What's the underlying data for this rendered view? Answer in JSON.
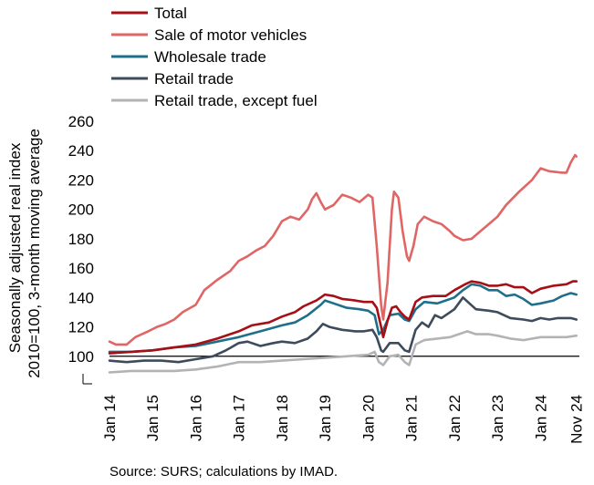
{
  "chart_data": {
    "type": "line",
    "ylabel_line1": "Seasonally adjusted real index",
    "ylabel_line2": "2010=100, 3-month moving average",
    "ylim": [
      80,
      260
    ],
    "yticks": [
      100,
      120,
      140,
      160,
      180,
      200,
      220,
      240,
      260
    ],
    "xlim": [
      2014.0,
      2024.9
    ],
    "xticks": [
      {
        "x": 2014.0,
        "label": "Jan 14"
      },
      {
        "x": 2015.0,
        "label": "Jan 15"
      },
      {
        "x": 2016.0,
        "label": "Jan 16"
      },
      {
        "x": 2017.0,
        "label": "Jan 17"
      },
      {
        "x": 2018.0,
        "label": "Jan 18"
      },
      {
        "x": 2019.0,
        "label": "Jan 19"
      },
      {
        "x": 2020.0,
        "label": "Jan 20"
      },
      {
        "x": 2021.0,
        "label": "Jan 21"
      },
      {
        "x": 2022.0,
        "label": "Jan 22"
      },
      {
        "x": 2023.0,
        "label": "Jan 23"
      },
      {
        "x": 2024.0,
        "label": "Jan 24"
      },
      {
        "x": 2024.83,
        "label": "Nov 24"
      }
    ],
    "reference_line": 100,
    "grid": false,
    "legend_position": "top",
    "series": [
      {
        "name": "Total",
        "color": "#a50f15",
        "points": [
          [
            2014.0,
            102
          ],
          [
            2014.5,
            103
          ],
          [
            2015.0,
            104
          ],
          [
            2015.5,
            106
          ],
          [
            2016.0,
            108
          ],
          [
            2016.5,
            112
          ],
          [
            2017.0,
            117
          ],
          [
            2017.3,
            121
          ],
          [
            2017.7,
            123
          ],
          [
            2018.0,
            127
          ],
          [
            2018.3,
            130
          ],
          [
            2018.5,
            134
          ],
          [
            2018.8,
            138
          ],
          [
            2019.0,
            142
          ],
          [
            2019.2,
            141
          ],
          [
            2019.4,
            139
          ],
          [
            2019.7,
            138
          ],
          [
            2019.9,
            137
          ],
          [
            2020.1,
            137
          ],
          [
            2020.2,
            133
          ],
          [
            2020.3,
            120
          ],
          [
            2020.35,
            113
          ],
          [
            2020.45,
            124
          ],
          [
            2020.55,
            133
          ],
          [
            2020.65,
            134
          ],
          [
            2020.75,
            130
          ],
          [
            2020.85,
            127
          ],
          [
            2020.95,
            125
          ],
          [
            2021.1,
            137
          ],
          [
            2021.25,
            140
          ],
          [
            2021.5,
            141
          ],
          [
            2021.8,
            141
          ],
          [
            2022.0,
            145
          ],
          [
            2022.25,
            149
          ],
          [
            2022.4,
            151
          ],
          [
            2022.6,
            150
          ],
          [
            2022.8,
            148
          ],
          [
            2023.0,
            148
          ],
          [
            2023.2,
            149
          ],
          [
            2023.4,
            147
          ],
          [
            2023.6,
            147
          ],
          [
            2023.8,
            143
          ],
          [
            2024.0,
            146
          ],
          [
            2024.3,
            148
          ],
          [
            2024.6,
            149
          ],
          [
            2024.75,
            151
          ],
          [
            2024.83,
            151
          ]
        ]
      },
      {
        "name": "Sale of motor vehicles",
        "color": "#e06666",
        "points": [
          [
            2014.0,
            110
          ],
          [
            2014.15,
            108
          ],
          [
            2014.4,
            108
          ],
          [
            2014.6,
            113
          ],
          [
            2014.9,
            117
          ],
          [
            2015.1,
            120
          ],
          [
            2015.3,
            122
          ],
          [
            2015.5,
            125
          ],
          [
            2015.7,
            130
          ],
          [
            2016.0,
            135
          ],
          [
            2016.2,
            145
          ],
          [
            2016.5,
            152
          ],
          [
            2016.8,
            158
          ],
          [
            2017.0,
            165
          ],
          [
            2017.2,
            168
          ],
          [
            2017.4,
            172
          ],
          [
            2017.6,
            175
          ],
          [
            2017.8,
            182
          ],
          [
            2018.0,
            192
          ],
          [
            2018.2,
            195
          ],
          [
            2018.4,
            193
          ],
          [
            2018.6,
            200
          ],
          [
            2018.7,
            207
          ],
          [
            2018.8,
            211
          ],
          [
            2018.9,
            205
          ],
          [
            2019.0,
            200
          ],
          [
            2019.2,
            203
          ],
          [
            2019.4,
            210
          ],
          [
            2019.6,
            208
          ],
          [
            2019.8,
            205
          ],
          [
            2020.0,
            210
          ],
          [
            2020.1,
            208
          ],
          [
            2020.2,
            175
          ],
          [
            2020.3,
            135
          ],
          [
            2020.35,
            125
          ],
          [
            2020.45,
            150
          ],
          [
            2020.55,
            200
          ],
          [
            2020.6,
            212
          ],
          [
            2020.7,
            208
          ],
          [
            2020.8,
            185
          ],
          [
            2020.9,
            168
          ],
          [
            2020.95,
            165
          ],
          [
            2021.05,
            175
          ],
          [
            2021.15,
            190
          ],
          [
            2021.3,
            195
          ],
          [
            2021.5,
            192
          ],
          [
            2021.7,
            190
          ],
          [
            2021.9,
            185
          ],
          [
            2022.0,
            182
          ],
          [
            2022.2,
            179
          ],
          [
            2022.4,
            180
          ],
          [
            2022.6,
            185
          ],
          [
            2022.8,
            190
          ],
          [
            2023.0,
            195
          ],
          [
            2023.2,
            203
          ],
          [
            2023.5,
            212
          ],
          [
            2023.8,
            220
          ],
          [
            2024.0,
            228
          ],
          [
            2024.2,
            226
          ],
          [
            2024.5,
            225
          ],
          [
            2024.6,
            225
          ],
          [
            2024.7,
            232
          ],
          [
            2024.8,
            237
          ],
          [
            2024.83,
            236
          ]
        ]
      },
      {
        "name": "Wholesale trade",
        "color": "#1f6f8b",
        "points": [
          [
            2014.0,
            103
          ],
          [
            2014.5,
            103
          ],
          [
            2015.0,
            104
          ],
          [
            2015.5,
            106
          ],
          [
            2016.0,
            107
          ],
          [
            2016.5,
            110
          ],
          [
            2017.0,
            113
          ],
          [
            2017.5,
            117
          ],
          [
            2018.0,
            121
          ],
          [
            2018.3,
            123
          ],
          [
            2018.6,
            128
          ],
          [
            2018.9,
            135
          ],
          [
            2019.0,
            138
          ],
          [
            2019.2,
            136
          ],
          [
            2019.5,
            133
          ],
          [
            2019.8,
            132
          ],
          [
            2020.0,
            131
          ],
          [
            2020.15,
            128
          ],
          [
            2020.25,
            115
          ],
          [
            2020.35,
            118
          ],
          [
            2020.5,
            128
          ],
          [
            2020.7,
            129
          ],
          [
            2020.85,
            125
          ],
          [
            2020.95,
            124
          ],
          [
            2021.1,
            132
          ],
          [
            2021.3,
            137
          ],
          [
            2021.6,
            136
          ],
          [
            2021.8,
            138
          ],
          [
            2022.0,
            140
          ],
          [
            2022.2,
            145
          ],
          [
            2022.4,
            149
          ],
          [
            2022.6,
            148
          ],
          [
            2022.8,
            145
          ],
          [
            2023.0,
            145
          ],
          [
            2023.2,
            141
          ],
          [
            2023.4,
            142
          ],
          [
            2023.6,
            139
          ],
          [
            2023.8,
            135
          ],
          [
            2024.0,
            136
          ],
          [
            2024.3,
            138
          ],
          [
            2024.5,
            141
          ],
          [
            2024.7,
            143
          ],
          [
            2024.83,
            142
          ]
        ]
      },
      {
        "name": "Retail trade",
        "color": "#3d4b5c",
        "points": [
          [
            2014.0,
            97
          ],
          [
            2014.4,
            96
          ],
          [
            2014.8,
            97
          ],
          [
            2015.2,
            97
          ],
          [
            2015.6,
            96
          ],
          [
            2016.0,
            98
          ],
          [
            2016.4,
            100
          ],
          [
            2016.7,
            104
          ],
          [
            2017.0,
            109
          ],
          [
            2017.2,
            110
          ],
          [
            2017.5,
            107
          ],
          [
            2017.8,
            109
          ],
          [
            2018.0,
            110
          ],
          [
            2018.3,
            109
          ],
          [
            2018.6,
            112
          ],
          [
            2018.8,
            117
          ],
          [
            2018.95,
            122
          ],
          [
            2019.1,
            120
          ],
          [
            2019.4,
            118
          ],
          [
            2019.7,
            117
          ],
          [
            2019.9,
            117
          ],
          [
            2020.1,
            118
          ],
          [
            2020.2,
            113
          ],
          [
            2020.3,
            104
          ],
          [
            2020.35,
            103
          ],
          [
            2020.5,
            109
          ],
          [
            2020.7,
            109
          ],
          [
            2020.85,
            104
          ],
          [
            2020.95,
            103
          ],
          [
            2021.1,
            118
          ],
          [
            2021.25,
            123
          ],
          [
            2021.4,
            120
          ],
          [
            2021.55,
            128
          ],
          [
            2021.7,
            126
          ],
          [
            2021.9,
            130
          ],
          [
            2022.0,
            132
          ],
          [
            2022.2,
            140
          ],
          [
            2022.35,
            136
          ],
          [
            2022.5,
            132
          ],
          [
            2022.8,
            131
          ],
          [
            2023.0,
            130
          ],
          [
            2023.3,
            126
          ],
          [
            2023.6,
            125
          ],
          [
            2023.8,
            124
          ],
          [
            2024.0,
            126
          ],
          [
            2024.2,
            125
          ],
          [
            2024.4,
            126
          ],
          [
            2024.7,
            126
          ],
          [
            2024.83,
            125
          ]
        ]
      },
      {
        "name": "Retail trade, except fuel",
        "color": "#b3b3b3",
        "points": [
          [
            2014.0,
            89
          ],
          [
            2014.5,
            90
          ],
          [
            2015.0,
            90
          ],
          [
            2015.5,
            90
          ],
          [
            2016.0,
            91
          ],
          [
            2016.5,
            93
          ],
          [
            2017.0,
            96
          ],
          [
            2017.5,
            96
          ],
          [
            2018.0,
            97
          ],
          [
            2018.5,
            98
          ],
          [
            2019.0,
            99
          ],
          [
            2019.5,
            100
          ],
          [
            2020.0,
            101
          ],
          [
            2020.15,
            103
          ],
          [
            2020.25,
            96
          ],
          [
            2020.35,
            94
          ],
          [
            2020.5,
            100
          ],
          [
            2020.7,
            101
          ],
          [
            2020.85,
            96
          ],
          [
            2020.95,
            94
          ],
          [
            2021.1,
            108
          ],
          [
            2021.3,
            111
          ],
          [
            2021.6,
            112
          ],
          [
            2021.9,
            113
          ],
          [
            2022.1,
            115
          ],
          [
            2022.3,
            117
          ],
          [
            2022.5,
            115
          ],
          [
            2022.8,
            115
          ],
          [
            2023.0,
            114
          ],
          [
            2023.3,
            112
          ],
          [
            2023.6,
            111
          ],
          [
            2024.0,
            113
          ],
          [
            2024.3,
            113
          ],
          [
            2024.6,
            113
          ],
          [
            2024.83,
            114
          ]
        ]
      }
    ]
  },
  "source_text": "Source: SURS; calculations by IMAD."
}
